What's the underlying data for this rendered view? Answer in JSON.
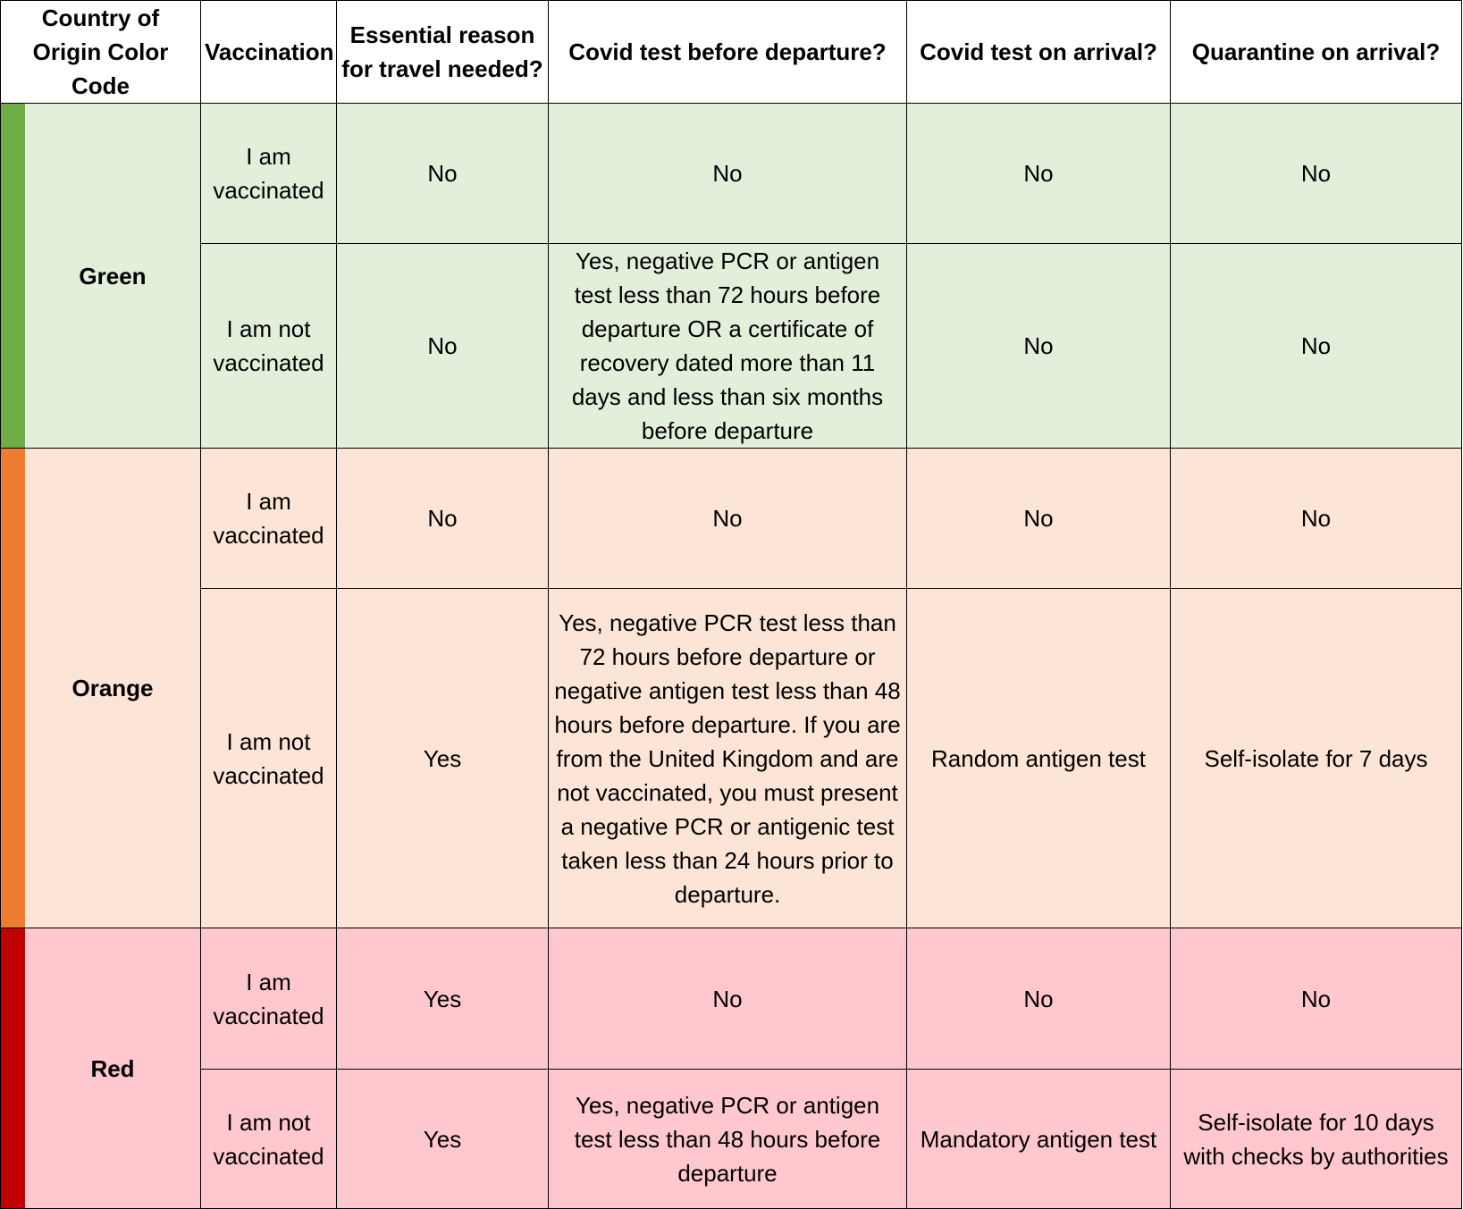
{
  "headers": {
    "country": "Country of Origin Color Code",
    "vaccination": "Vaccination",
    "essential": "Essential reason for travel needed?",
    "test_before": "Covid test before departure?",
    "test_arrival": "Covid test on arrival?",
    "quarantine": "Quarantine on arrival?"
  },
  "colors": {
    "green_strip": "#70ad47",
    "green_bg": "#e2efda",
    "orange_strip": "#ed7d31",
    "orange_bg": "#fce4d6",
    "red_strip": "#c00000",
    "red_bg": "#ffc7ce"
  },
  "groups": [
    {
      "code": "Green",
      "rows": [
        {
          "vaccination": "I am vaccinated",
          "essential": "No",
          "test_before": "No",
          "test_arrival": "No",
          "quarantine": "No"
        },
        {
          "vaccination": "I am not vaccinated",
          "essential": "No",
          "test_before": "Yes, negative PCR or antigen test less than 72 hours before departure OR a certificate of recovery dated more than 11 days and less than six months before departure",
          "test_arrival": "No",
          "quarantine": "No"
        }
      ]
    },
    {
      "code": "Orange",
      "rows": [
        {
          "vaccination": "I am vaccinated",
          "essential": "No",
          "test_before": "No",
          "test_arrival": "No",
          "quarantine": "No"
        },
        {
          "vaccination": "I am not vaccinated",
          "essential": "Yes",
          "test_before": "Yes, negative PCR test less than 72 hours before departure or negative antigen test less than 48 hours before departure. If you are from the United Kingdom and are not vaccinated, you must present a negative PCR or antigenic test taken less than 24 hours prior to departure.",
          "test_arrival": "Random antigen test",
          "quarantine": "Self-isolate for 7 days"
        }
      ]
    },
    {
      "code": "Red",
      "rows": [
        {
          "vaccination": "I am vaccinated",
          "essential": "Yes",
          "test_before": "No",
          "test_arrival": "No",
          "quarantine": "No"
        },
        {
          "vaccination": "I am not vaccinated",
          "essential": "Yes",
          "test_before": "Yes, negative PCR or antigen test less than 48 hours before departure",
          "test_arrival": "Mandatory antigen test",
          "quarantine": "Self-isolate for 10 days with checks by authorities"
        }
      ]
    }
  ]
}
